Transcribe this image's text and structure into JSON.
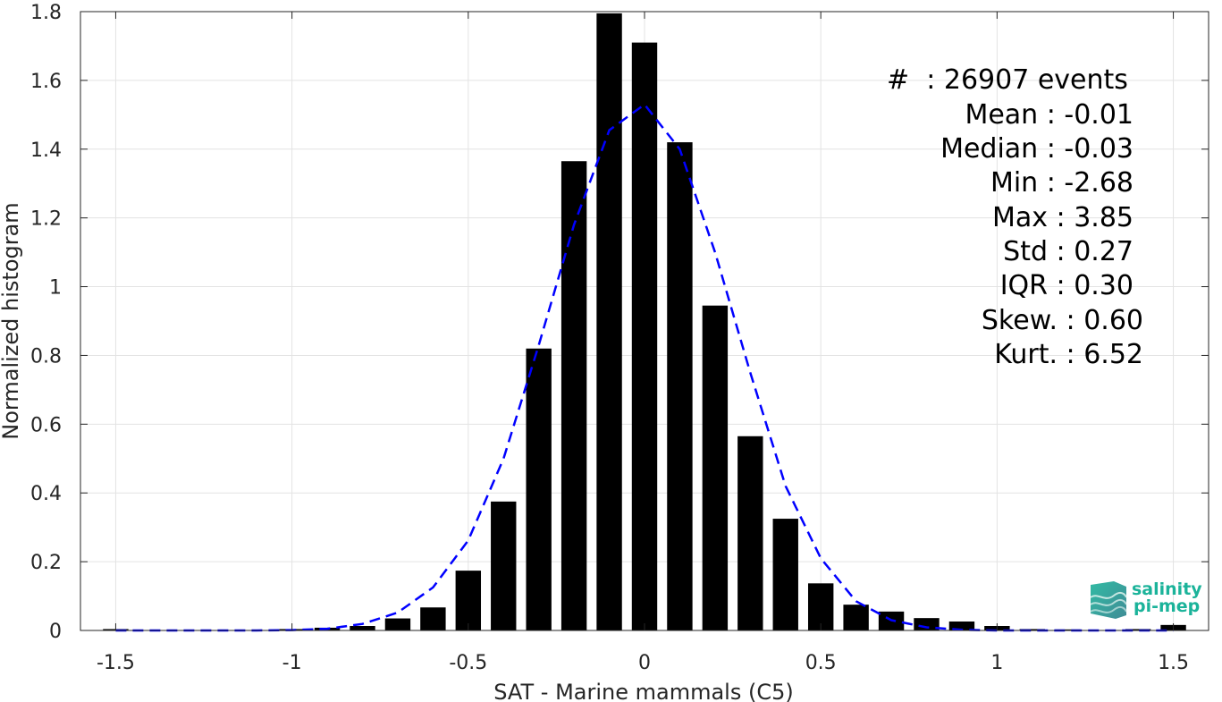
{
  "chart_data": {
    "type": "bar",
    "xlabel": "SAT - Marine mammals (C5)",
    "ylabel": "Normalized histogram",
    "xlim": [
      -1.6,
      1.6
    ],
    "ylim": [
      0,
      1.8
    ],
    "x_ticks": [
      -1.5,
      -1,
      -0.5,
      0,
      0.5,
      1,
      1.5
    ],
    "x_tick_labels": [
      "-1.5",
      "-1",
      "-0.5",
      "0",
      "0.5",
      "1",
      "1.5"
    ],
    "y_ticks": [
      0,
      0.2,
      0.4,
      0.6,
      0.8,
      1,
      1.2,
      1.4,
      1.6,
      1.8
    ],
    "y_tick_labels": [
      "0",
      "0.2",
      "0.4",
      "0.6",
      "0.8",
      "1",
      "1.2",
      "1.4",
      "1.6",
      "1.8"
    ],
    "grid": true,
    "bar_color": "#000000",
    "bins": [
      {
        "x": -1.5,
        "value": 0.004
      },
      {
        "x": -1.0,
        "value": 0.004
      },
      {
        "x": -0.9,
        "value": 0.008
      },
      {
        "x": -0.8,
        "value": 0.013
      },
      {
        "x": -0.7,
        "value": 0.035
      },
      {
        "x": -0.6,
        "value": 0.067
      },
      {
        "x": -0.5,
        "value": 0.174
      },
      {
        "x": -0.4,
        "value": 0.375
      },
      {
        "x": -0.3,
        "value": 0.82
      },
      {
        "x": -0.2,
        "value": 1.365
      },
      {
        "x": -0.1,
        "value": 1.795
      },
      {
        "x": 0.0,
        "value": 1.71
      },
      {
        "x": 0.1,
        "value": 1.42
      },
      {
        "x": 0.2,
        "value": 0.945
      },
      {
        "x": 0.3,
        "value": 0.565
      },
      {
        "x": 0.4,
        "value": 0.325
      },
      {
        "x": 0.5,
        "value": 0.137
      },
      {
        "x": 0.6,
        "value": 0.075
      },
      {
        "x": 0.7,
        "value": 0.055
      },
      {
        "x": 0.8,
        "value": 0.036
      },
      {
        "x": 0.9,
        "value": 0.026
      },
      {
        "x": 1.0,
        "value": 0.013
      },
      {
        "x": 1.1,
        "value": 0.004
      },
      {
        "x": 1.2,
        "value": 0.003
      },
      {
        "x": 1.4,
        "value": 0.004
      },
      {
        "x": 1.5,
        "value": 0.016
      }
    ],
    "fit_curve": {
      "style": "dashed",
      "color": "#0000ff",
      "points": [
        [
          -1.5,
          0.0
        ],
        [
          -1.4,
          0.0
        ],
        [
          -1.3,
          0.0
        ],
        [
          -1.2,
          0.0
        ],
        [
          -1.1,
          0.0
        ],
        [
          -1.0,
          0.001
        ],
        [
          -0.9,
          0.005
        ],
        [
          -0.8,
          0.019
        ],
        [
          -0.7,
          0.052
        ],
        [
          -0.6,
          0.125
        ],
        [
          -0.5,
          0.262
        ],
        [
          -0.4,
          0.5
        ],
        [
          -0.3,
          0.83
        ],
        [
          -0.2,
          1.18
        ],
        [
          -0.1,
          1.455
        ],
        [
          0.0,
          1.53
        ],
        [
          0.1,
          1.4
        ],
        [
          0.2,
          1.1
        ],
        [
          0.3,
          0.75
        ],
        [
          0.4,
          0.42
        ],
        [
          0.5,
          0.21
        ],
        [
          0.6,
          0.085
        ],
        [
          0.7,
          0.03
        ],
        [
          0.8,
          0.009
        ],
        [
          0.9,
          0.002
        ],
        [
          1.0,
          0.0
        ],
        [
          1.1,
          0.0
        ],
        [
          1.2,
          0.0
        ],
        [
          1.3,
          0.0
        ],
        [
          1.4,
          0.0
        ],
        [
          1.5,
          0.0
        ]
      ]
    }
  },
  "stats": [
    {
      "text": "#  : 26907 events"
    },
    {
      "text": "Mean : -0.01"
    },
    {
      "text": "Median : -0.03"
    },
    {
      "text": "Min : -2.68"
    },
    {
      "text": "Max : 3.85"
    },
    {
      "text": "Std : 0.27"
    },
    {
      "text": "IQR : 0.30"
    },
    {
      "text": "Skew. : 0.60"
    },
    {
      "text": "Kurt. : 6.52"
    }
  ],
  "logo": {
    "line1": "salinity",
    "line2": "pi-mep",
    "color": "#1bb39a"
  }
}
